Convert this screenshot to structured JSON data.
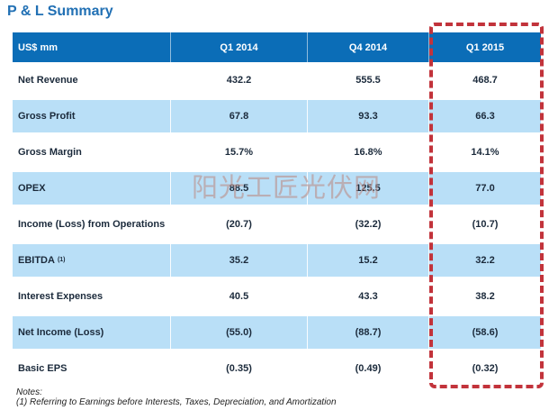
{
  "title": "P & L Summary",
  "colors": {
    "header_bg": "#0B6DB7",
    "alt_row_bg": "#B9DFF7",
    "highlight_border": "#C2333B",
    "title_color": "#2170B4"
  },
  "table": {
    "headers": [
      "US$ mm",
      "Q1 2014",
      "Q4 2014",
      "Q1 2015"
    ],
    "highlighted_column": "Q1 2015",
    "rows": [
      {
        "label": "Net Revenue",
        "values": [
          "432.2",
          "555.5",
          "468.7"
        ]
      },
      {
        "label": "Gross Profit",
        "values": [
          "67.8",
          "93.3",
          "66.3"
        ]
      },
      {
        "label": "Gross Margin",
        "values": [
          "15.7%",
          "16.8%",
          "14.1%"
        ]
      },
      {
        "label": "OPEX",
        "values": [
          "88.5",
          "125.5",
          "77.0"
        ]
      },
      {
        "label": "Income (Loss) from Operations",
        "values": [
          "(20.7)",
          "(32.2)",
          "(10.7)"
        ]
      },
      {
        "label": "EBITDA",
        "sup": "(1)",
        "values": [
          "35.2",
          "15.2",
          "32.2"
        ]
      },
      {
        "label": "Interest Expenses",
        "values": [
          "40.5",
          "43.3",
          "38.2"
        ]
      },
      {
        "label": "Net Income  (Loss)",
        "values": [
          "(55.0)",
          "(88.7)",
          "(58.6)"
        ]
      },
      {
        "label": "Basic EPS",
        "values": [
          "(0.35)",
          "(0.49)",
          "(0.32)"
        ]
      }
    ]
  },
  "watermark": "阳光工匠光伏网",
  "notes": {
    "heading": "Notes:",
    "line1": "(1) Referring to Earnings before Interests, Taxes, Depreciation, and Amortization"
  }
}
